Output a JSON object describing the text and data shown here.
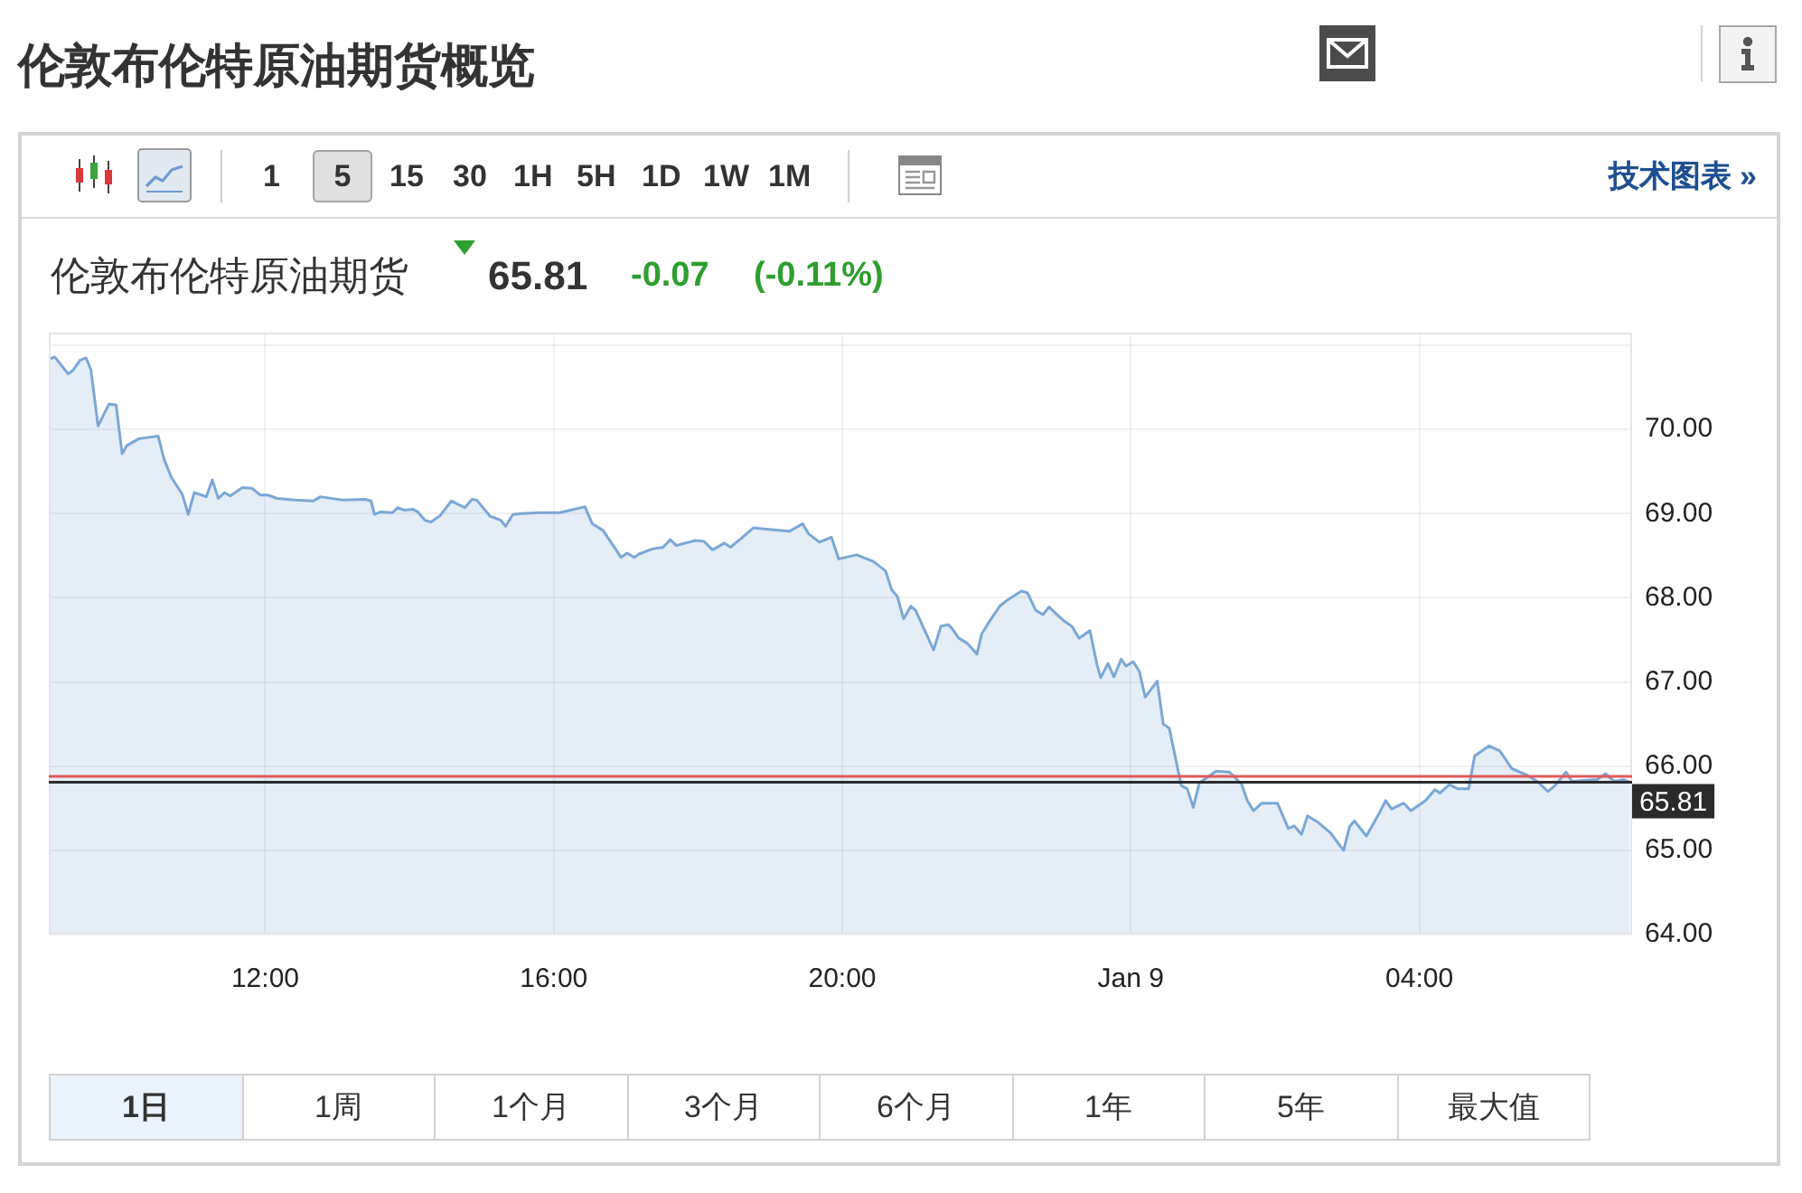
{
  "chart_data": {
    "type": "area",
    "title": "伦敦布伦特原油期货概览",
    "subtitle": "伦敦布伦特原油期货",
    "annotations": [
      "65.81",
      "-0.07",
      "(-0.11%)",
      "1",
      "5",
      "15",
      "30",
      "1H",
      "5H",
      "1D",
      "1W",
      "1M",
      "技术图表 »",
      "1日",
      "1周",
      "1个月",
      "3个月",
      "6个月",
      "1年",
      "5年",
      "最大值"
    ],
    "x": [
      "--01-08T09:01",
      "--01-08T09:05",
      "--01-08T09:16",
      "--01-08T09:20",
      "--01-08T09:26",
      "--01-08T09:31",
      "--01-08T09:35",
      "--01-08T09:41",
      "--01-08T09:50",
      "--01-08T09:56",
      "--01-08T10:01",
      "--01-08T10:05",
      "--01-08T10:15",
      "--01-08T10:31",
      "--01-08T10:36",
      "--01-08T10:42",
      "--01-08T10:51",
      "--01-08T10:56",
      "--01-08T11:01",
      "--01-08T11:11",
      "--01-08T11:16",
      "--01-08T11:21",
      "--01-08T11:26",
      "--01-08T11:31",
      "--01-08T11:41",
      "--01-08T11:49",
      "--01-08T11:56",
      "--01-08T12:02",
      "--01-08T12:10",
      "--01-08T12:25",
      "--01-08T12:40",
      "--01-08T12:46",
      "--01-08T13:05",
      "--01-08T13:23",
      "--01-08T13:28",
      "--01-08T13:31",
      "--01-08T13:36",
      "--01-08T13:46",
      "--01-08T13:50",
      "--01-08T13:56",
      "--01-08T14:03",
      "--01-08T14:07",
      "--01-08T14:13",
      "--01-08T14:18",
      "--01-08T14:25",
      "--01-08T14:35",
      "--01-08T14:46",
      "--01-08T14:52",
      "--01-08T14:56",
      "--01-08T15:07",
      "--01-08T15:16",
      "--01-08T15:20",
      "--01-08T15:26",
      "--01-08T15:33",
      "--01-08T15:48",
      "--01-08T16:05",
      "--01-08T16:26",
      "--01-08T16:32",
      "--01-08T16:41",
      "--01-08T16:56",
      "--01-08T17:01",
      "--01-08T17:07",
      "--01-08T17:11",
      "--01-08T17:22",
      "--01-08T17:31",
      "--01-08T17:37",
      "--01-08T17:42",
      "--01-08T17:47",
      "--01-08T17:58",
      "--01-08T18:05",
      "--01-08T18:12",
      "--01-08T18:22",
      "--01-08T18:27",
      "--01-08T18:38",
      "--01-08T18:46",
      "--01-08T19:01",
      "--01-08T19:16",
      "--01-08T19:27",
      "--01-08T19:32",
      "--01-08T19:41",
      "--01-08T19:51",
      "--01-08T19:57",
      "--01-08T20:12",
      "--01-08T20:26",
      "--01-08T20:36",
      "--01-08T20:41",
      "--01-08T20:46",
      "--01-08T20:51",
      "--01-08T20:57",
      "--01-08T21:01",
      "--01-08T21:16",
      "--01-08T21:22",
      "--01-08T21:28",
      "--01-08T21:31",
      "--01-08T21:37",
      "--01-08T21:44",
      "--01-08T21:52",
      "--01-08T21:56",
      "--01-08T22:02",
      "--01-08T22:11",
      "--01-08T22:17",
      "--01-08T22:29",
      "--01-08T22:34",
      "--01-08T22:41",
      "--01-08T22:47",
      "--01-08T22:52",
      "--01-08T23:04",
      "--01-08T23:11",
      "--01-08T23:17",
      "--01-08T23:26",
      "--01-08T23:32",
      "--01-08T23:35",
      "--01-08T23:41",
      "--01-08T23:46",
      "--01-08T23:52",
      "--01-08T23:56",
      "--01-09T00:02",
      "--01-09T00:07",
      "--01-09T00:12",
      "--01-09T00:22",
      "--01-09T00:27",
      "--01-09T00:32",
      "--01-09T00:42",
      "--01-09T00:47",
      "--01-09T00:52",
      "--01-09T00:57",
      "--01-09T01:11",
      "--01-09T01:22",
      "--01-09T01:32",
      "--01-09T01:37",
      "--01-09T01:42",
      "--01-09T01:49",
      "--01-09T02:02",
      "--01-09T02:11",
      "--01-09T02:16",
      "--01-09T02:22",
      "--01-09T02:27",
      "--01-09T02:35",
      "--01-09T02:46",
      "--01-09T02:57",
      "--01-09T03:02",
      "--01-09T03:06",
      "--01-09T03:16",
      "--01-09T03:27",
      "--01-09T03:32",
      "--01-09T03:37",
      "--01-09T03:47",
      "--01-09T03:53",
      "--01-09T04:05",
      "--01-09T04:13",
      "--01-09T04:17",
      "--01-09T04:25",
      "--01-09T04:32",
      "--01-09T04:41",
      "--01-09T04:46",
      "--01-09T04:58",
      "--01-09T05:07",
      "--01-09T05:17",
      "--01-09T05:30",
      "--01-09T05:38",
      "--01-09T05:47",
      "--01-09T05:53",
      "--01-09T06:02",
      "--01-09T06:07",
      "--01-09T06:28",
      "--01-09T06:35",
      "--01-09T06:42",
      "--01-09T06:50",
      "--01-09T06:55"
    ],
    "values": [
      70.84,
      70.86,
      70.66,
      70.7,
      70.82,
      70.85,
      70.71,
      70.04,
      70.3,
      70.29,
      69.71,
      69.81,
      69.89,
      69.92,
      69.64,
      69.43,
      69.23,
      68.99,
      69.25,
      69.2,
      69.4,
      69.18,
      69.25,
      69.21,
      69.31,
      69.3,
      69.22,
      69.22,
      69.18,
      69.16,
      69.15,
      69.2,
      69.16,
      69.17,
      69.15,
      68.99,
      69.02,
      69.01,
      69.07,
      69.04,
      69.05,
      69.02,
      68.92,
      68.9,
      68.97,
      69.15,
      69.07,
      69.17,
      69.16,
      68.97,
      68.92,
      68.85,
      68.99,
      69.0,
      69.01,
      69.01,
      69.08,
      68.88,
      68.8,
      68.48,
      68.53,
      68.48,
      68.52,
      68.58,
      68.6,
      68.69,
      68.62,
      68.64,
      68.68,
      68.67,
      68.57,
      68.65,
      68.6,
      68.73,
      68.83,
      68.81,
      68.79,
      68.88,
      68.76,
      68.66,
      68.72,
      68.46,
      68.51,
      68.43,
      68.32,
      68.1,
      68.01,
      67.75,
      67.9,
      67.85,
      67.38,
      67.66,
      67.68,
      67.64,
      67.52,
      67.46,
      67.33,
      67.57,
      67.71,
      67.9,
      67.97,
      68.08,
      68.06,
      67.85,
      67.8,
      67.89,
      67.73,
      67.66,
      67.52,
      67.61,
      67.2,
      67.05,
      67.22,
      67.06,
      67.27,
      67.19,
      67.24,
      67.13,
      66.82,
      67.01,
      66.5,
      66.45,
      65.77,
      65.73,
      65.51,
      65.8,
      65.94,
      65.93,
      65.79,
      65.59,
      65.47,
      65.56,
      65.56,
      65.26,
      65.29,
      65.19,
      65.41,
      65.34,
      65.21,
      65.0,
      65.28,
      65.35,
      65.17,
      65.45,
      65.59,
      65.49,
      65.56,
      65.47,
      65.59,
      65.72,
      65.68,
      65.78,
      65.73,
      65.73,
      66.12,
      66.24,
      66.18,
      65.97,
      65.89,
      65.82,
      65.7,
      65.77,
      65.93,
      65.82,
      65.84,
      65.91,
      65.82,
      65.84,
      65.81
    ],
    "color": "#7ba7d6",
    "xlim": [
      "--01-08T09:00",
      "--01-09T06:57"
    ],
    "xticks": [
      {
        "value": "--01-08T12:00",
        "label": "12:00"
      },
      {
        "value": "--01-08T16:00",
        "label": "16:00"
      },
      {
        "value": "--01-08T20:00",
        "label": "20:00"
      },
      {
        "value": "--01-09T00:00",
        "label": "Jan 9"
      },
      {
        "value": "--01-09T04:00",
        "label": "04:00"
      }
    ],
    "ylim": [
      64,
      71.15
    ],
    "yticks": [
      {
        "value": 64,
        "label": "64.00"
      },
      {
        "value": 65,
        "label": "65.00"
      },
      {
        "value": 66,
        "label": "66.00"
      },
      {
        "value": 67,
        "label": "67.00"
      },
      {
        "value": 68,
        "label": "68.00"
      },
      {
        "value": 69,
        "label": "69.00"
      },
      {
        "value": 70,
        "label": "70.00"
      },
      {
        "value": 71,
        "label": null
      }
    ],
    "grid": true,
    "ref_lines": [
      {
        "axis": "y",
        "value": 65.88,
        "color": "#e05a5a"
      },
      {
        "axis": "y",
        "value": 65.81,
        "label": "65.81",
        "color": "#2b2b2b"
      }
    ]
  }
}
